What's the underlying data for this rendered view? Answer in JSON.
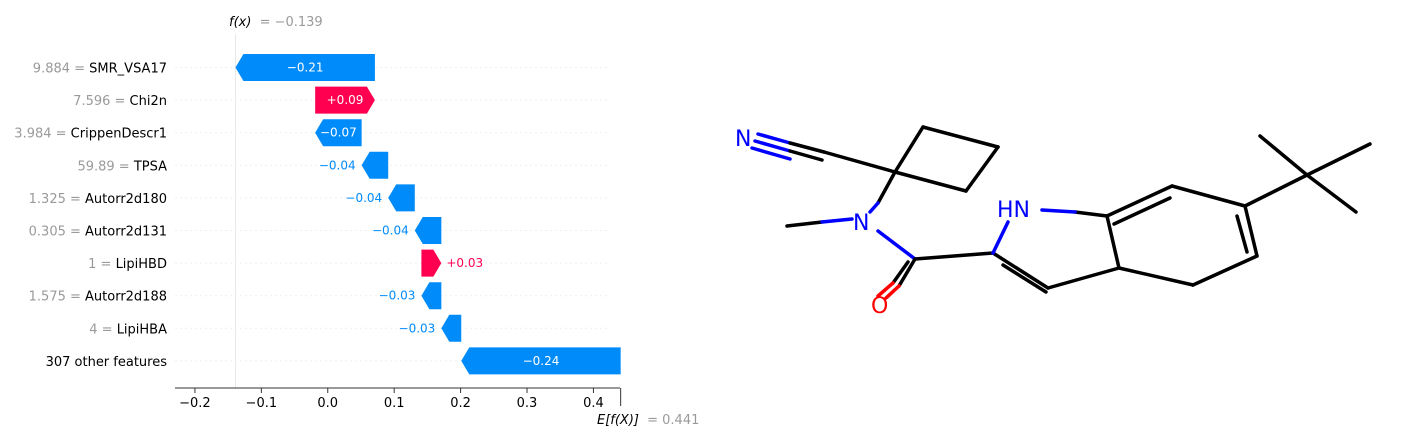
{
  "chart_data": {
    "type": "waterfall",
    "fx_label": "f(x)",
    "fx_value": "= −0.139",
    "ex_label": "E[f(X)]",
    "ex_value": "= 0.441",
    "fx": -0.139,
    "base": 0.441,
    "xlim": [
      -0.23,
      0.44
    ],
    "xticks": [
      -0.2,
      -0.1,
      0.0,
      0.1,
      0.2,
      0.3,
      0.4
    ],
    "xtick_labels": [
      "−0.2",
      "−0.1",
      "0.0",
      "0.1",
      "0.2",
      "0.3",
      "0.4"
    ],
    "features": [
      {
        "value": "9.884 =",
        "name": "SMR_VSA17",
        "shap": -0.21,
        "label": "−0.21"
      },
      {
        "value": "7.596 =",
        "name": "Chi2n",
        "shap": 0.09,
        "label": "+0.09"
      },
      {
        "value": "3.984 =",
        "name": "CrippenDescr1",
        "shap": -0.07,
        "label": "−0.07"
      },
      {
        "value": "59.89 =",
        "name": "TPSA",
        "shap": -0.04,
        "label": "−0.04"
      },
      {
        "value": "1.325 =",
        "name": "Autorr2d180",
        "shap": -0.04,
        "label": "−0.04"
      },
      {
        "value": "0.305 =",
        "name": "Autorr2d131",
        "shap": -0.04,
        "label": "−0.04"
      },
      {
        "value": "1 =",
        "name": "LipiHBD",
        "shap": 0.03,
        "label": "+0.03"
      },
      {
        "value": "1.575 =",
        "name": "Autorr2d188",
        "shap": -0.03,
        "label": "−0.03"
      },
      {
        "value": "4 =",
        "name": "LipiHBA",
        "shap": -0.03,
        "label": "−0.03"
      },
      {
        "value": "",
        "name": "307 other features",
        "shap": -0.24,
        "label": "−0.24"
      }
    ],
    "colors": {
      "negative": "#008bfb",
      "positive": "#ff0051"
    }
  },
  "molecule": {
    "atoms": {
      "nitrile_n": "N",
      "amide_n": "N",
      "indole_nh": "HN",
      "carbonyl_o": "O"
    },
    "colors": {
      "nitrogen": "#0000ff",
      "oxygen": "#ff0000",
      "bond": "#000000"
    }
  }
}
